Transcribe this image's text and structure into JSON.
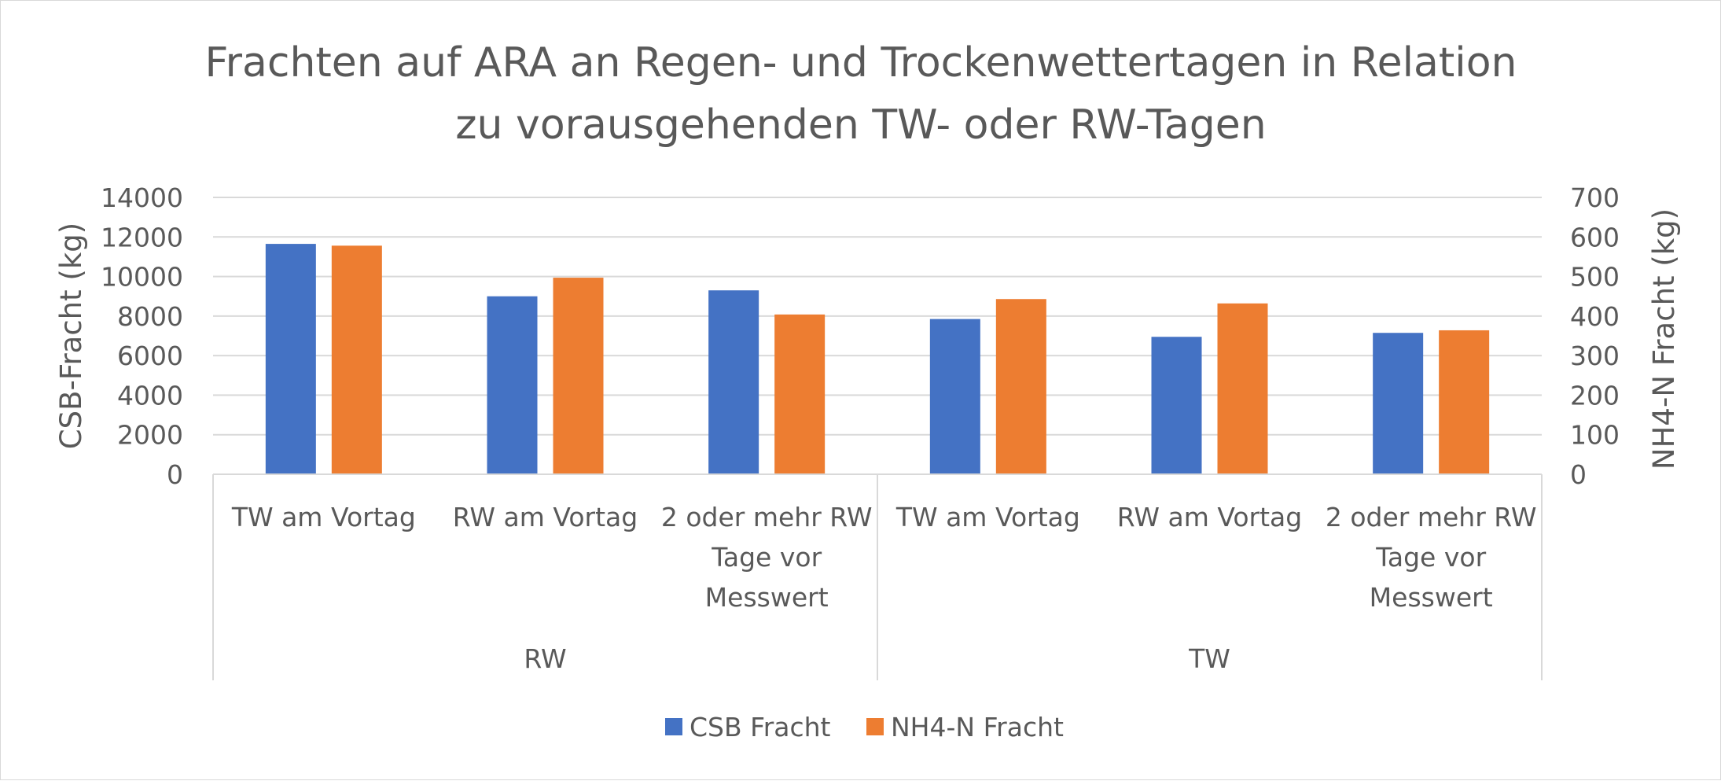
{
  "chart_data": {
    "type": "bar",
    "title_lines": [
      "Frachten auf ARA an Regen- und Trockenwettertagen in Relation",
      "zu vorausgehenden TW- oder RW-Tagen"
    ],
    "groups": [
      {
        "label": "RW",
        "categories": [
          [
            "TW am Vortag"
          ],
          [
            "RW am Vortag"
          ],
          [
            "2 oder mehr RW",
            "Tage vor",
            "Messwert"
          ]
        ]
      },
      {
        "label": "TW",
        "categories": [
          [
            "TW am Vortag"
          ],
          [
            "RW am Vortag"
          ],
          [
            "2 oder mehr RW",
            "Tage vor",
            "Messwert"
          ]
        ]
      }
    ],
    "series": [
      {
        "name": "CSB Fracht",
        "axis": "left",
        "color": "#4472C4",
        "values": [
          11650,
          9000,
          9300,
          7850,
          6950,
          7150
        ]
      },
      {
        "name": "NH4-N Fracht",
        "axis": "right",
        "color": "#ED7D31",
        "values": [
          578,
          497,
          404,
          443,
          432,
          364
        ]
      }
    ],
    "ylabel": "CSB-Fracht (kg)",
    "y2label": "NH4-N Fracht (kg)",
    "ylim": [
      0,
      14000
    ],
    "y2lim": [
      0,
      700
    ],
    "yticks": [
      "0",
      "2000",
      "4000",
      "6000",
      "8000",
      "10000",
      "12000",
      "14000"
    ],
    "y2ticks": [
      "0",
      "100",
      "200",
      "300",
      "400",
      "500",
      "600",
      "700"
    ],
    "grid": true,
    "legend_position": "bottom"
  }
}
